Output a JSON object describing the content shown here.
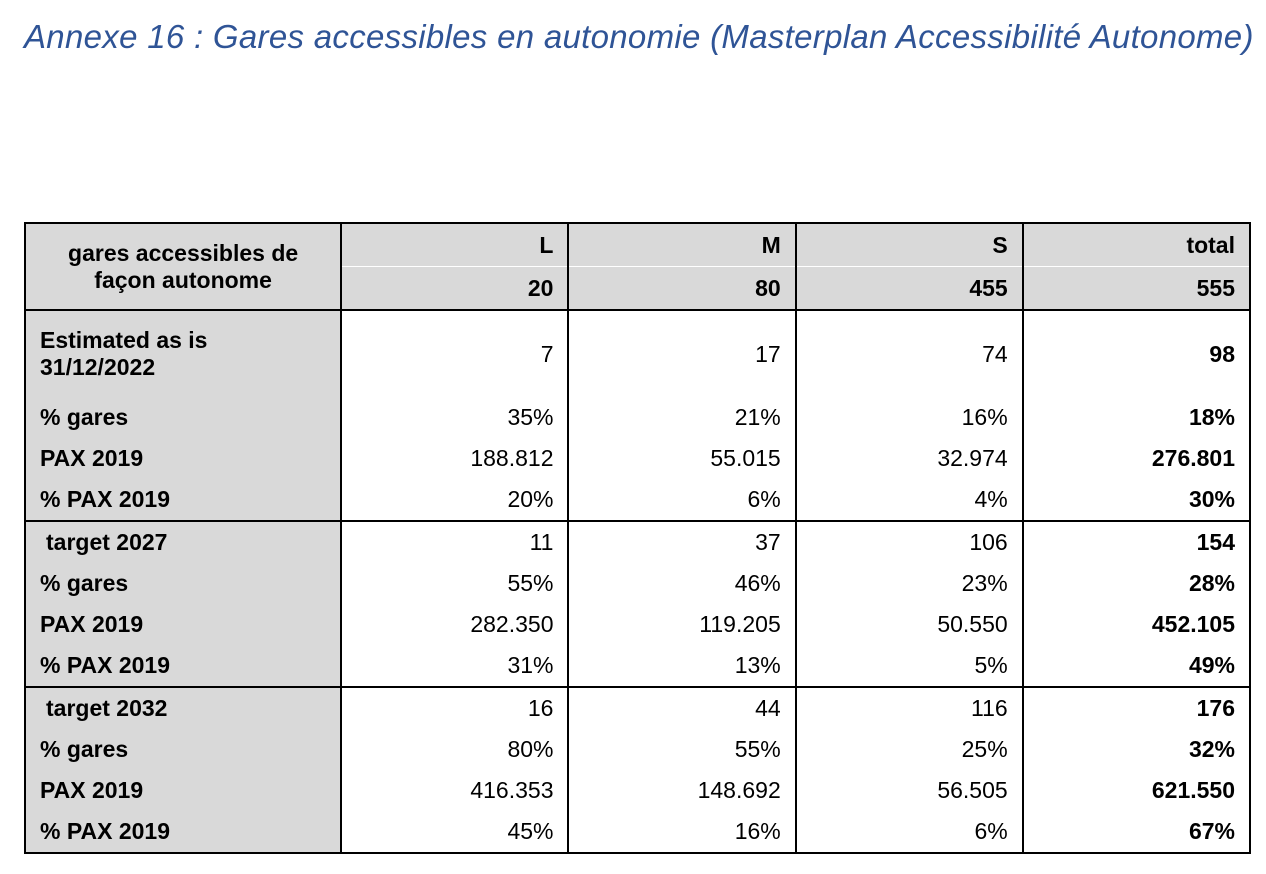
{
  "title": "Annexe 16 : Gares accessibles en autonomie (Masterplan Accessibilité Autonome)",
  "table": {
    "corner_label": "gares accessibles de façon autonome",
    "columns": [
      "L",
      "M",
      "S",
      "total"
    ],
    "column_counts": [
      "20",
      "80",
      "455",
      "555"
    ],
    "blocks": [
      {
        "rows": [
          {
            "label": "Estimated as is 31/12/2022",
            "values": [
              "7",
              "17",
              "74",
              "98"
            ]
          },
          {
            "label": "% gares",
            "values": [
              "35%",
              "21%",
              "16%",
              "18%"
            ]
          },
          {
            "label": "PAX 2019",
            "values": [
              "188.812",
              "55.015",
              "32.974",
              "276.801"
            ]
          },
          {
            "label": "% PAX 2019",
            "values": [
              "20%",
              "6%",
              "4%",
              "30%"
            ]
          }
        ]
      },
      {
        "rows": [
          {
            "label": "target 2027",
            "values": [
              "11",
              "37",
              "106",
              "154"
            ]
          },
          {
            "label": "% gares",
            "values": [
              "55%",
              "46%",
              "23%",
              "28%"
            ]
          },
          {
            "label": "PAX 2019",
            "values": [
              "282.350",
              "119.205",
              "50.550",
              "452.105"
            ]
          },
          {
            "label": "% PAX 2019",
            "values": [
              "31%",
              "13%",
              "5%",
              "49%"
            ]
          }
        ]
      },
      {
        "rows": [
          {
            "label": "target 2032",
            "values": [
              "16",
              "44",
              "116",
              "176"
            ]
          },
          {
            "label": "% gares",
            "values": [
              "80%",
              "55%",
              "25%",
              "32%"
            ]
          },
          {
            "label": "PAX 2019",
            "values": [
              "416.353",
              "148.692",
              "56.505",
              "621.550"
            ]
          },
          {
            "label": "% PAX 2019",
            "values": [
              "45%",
              "16%",
              "6%",
              "67%"
            ]
          }
        ]
      }
    ]
  }
}
